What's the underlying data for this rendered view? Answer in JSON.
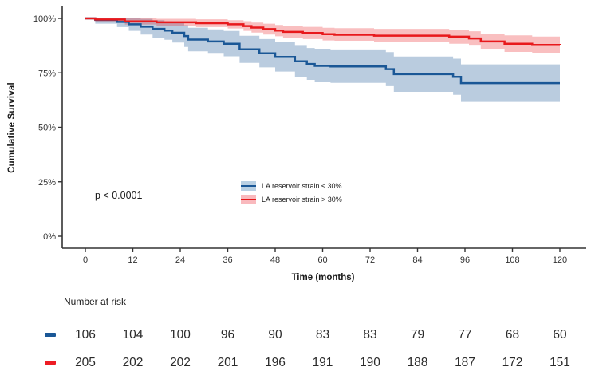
{
  "chart_data": {
    "type": "line",
    "subtype": "kaplan-meier-step",
    "title": "",
    "xlabel": "Time (months)",
    "ylabel": "Cumulative Survival",
    "xlim": [
      0,
      120
    ],
    "ylim": [
      0,
      100
    ],
    "grid": false,
    "x_ticks": [
      0,
      12,
      24,
      36,
      48,
      60,
      72,
      84,
      96,
      108,
      120
    ],
    "y_ticks": [
      0,
      25,
      50,
      75,
      100
    ],
    "y_tick_labels": [
      "0%",
      "25%",
      "50%",
      "75%",
      "100%"
    ],
    "annotation": "p < 0.0001",
    "legend_position": "inside lower-center",
    "axis_color": "#333333",
    "series": [
      {
        "name": "LA reservoir strain ≤ 30%",
        "color": "#1a5796",
        "band_color": "rgba(26,87,150,0.30)",
        "swatch_color": "#b9d0e3",
        "points_format": [
          "month",
          "survival_pct",
          "ci_lower_pct",
          "ci_upper_pct"
        ],
        "points": [
          [
            0,
            100,
            100,
            100
          ],
          [
            2.5,
            99.3,
            97.6,
            100
          ],
          [
            8,
            98.4,
            96.0,
            100
          ],
          [
            11,
            97.3,
            94.3,
            100
          ],
          [
            14,
            96.2,
            92.6,
            99.8
          ],
          [
            17,
            95.2,
            91.2,
            99.2
          ],
          [
            20,
            94.4,
            90.2,
            98.6
          ],
          [
            22,
            93.4,
            88.9,
            97.9
          ],
          [
            25,
            91.9,
            86.9,
            96.9
          ],
          [
            26,
            90.3,
            84.9,
            95.7
          ],
          [
            31,
            89.4,
            83.8,
            95.0
          ],
          [
            35,
            88.4,
            82.6,
            94.2
          ],
          [
            39,
            85.8,
            79.6,
            92.0
          ],
          [
            44,
            84.0,
            77.5,
            90.5
          ],
          [
            48,
            82.3,
            75.6,
            89.0
          ],
          [
            53,
            80.3,
            73.2,
            87.4
          ],
          [
            56,
            79.1,
            71.8,
            86.4
          ],
          [
            58,
            78.2,
            70.7,
            85.7
          ],
          [
            62,
            77.9,
            70.4,
            85.4
          ],
          [
            76,
            76.7,
            68.9,
            84.5
          ],
          [
            78,
            74.4,
            66.3,
            82.5
          ],
          [
            93,
            73.2,
            64.9,
            81.5
          ],
          [
            95,
            70.3,
            61.7,
            78.9
          ],
          [
            120,
            70.3,
            61.7,
            78.9
          ]
        ]
      },
      {
        "name": "LA reservoir strain > 30%",
        "color": "#e8191c",
        "band_color": "rgba(232,25,28,0.28)",
        "swatch_color": "#f9b9bd",
        "points_format": [
          "month",
          "survival_pct",
          "ci_lower_pct",
          "ci_upper_pct"
        ],
        "points": [
          [
            0,
            100,
            100,
            100
          ],
          [
            2.5,
            99.5,
            98.6,
            100
          ],
          [
            10,
            98.6,
            97.2,
            100
          ],
          [
            18,
            98.2,
            96.6,
            99.8
          ],
          [
            28,
            97.8,
            96.0,
            99.6
          ],
          [
            36,
            97.3,
            95.4,
            99.2
          ],
          [
            40,
            96.5,
            94.3,
            98.7
          ],
          [
            42,
            95.8,
            93.5,
            98.1
          ],
          [
            45,
            95.1,
            92.6,
            97.6
          ],
          [
            48,
            94.4,
            91.8,
            97.0
          ],
          [
            50,
            93.8,
            91.1,
            96.5
          ],
          [
            55,
            93.3,
            90.5,
            96.1
          ],
          [
            60,
            92.8,
            89.9,
            95.7
          ],
          [
            63,
            92.5,
            89.5,
            95.5
          ],
          [
            73,
            92.1,
            89.0,
            95.2
          ],
          [
            92,
            91.6,
            88.4,
            94.8
          ],
          [
            97,
            90.8,
            87.5,
            94.1
          ],
          [
            100,
            89.4,
            85.8,
            93.0
          ],
          [
            106,
            88.4,
            84.6,
            92.2
          ],
          [
            113,
            87.8,
            83.9,
            91.7
          ],
          [
            120,
            87.6,
            83.6,
            91.6
          ]
        ]
      }
    ],
    "risk_table": {
      "title": "Number at risk",
      "times": [
        0,
        12,
        24,
        36,
        48,
        60,
        72,
        84,
        96,
        108,
        120
      ],
      "rows": [
        {
          "group": "LA reservoir strain ≤ 30%",
          "color": "#1a5796",
          "counts": [
            106,
            104,
            100,
            96,
            90,
            83,
            83,
            79,
            77,
            68,
            60
          ]
        },
        {
          "group": "LA reservoir strain > 30%",
          "color": "#ed1c24",
          "counts": [
            205,
            202,
            202,
            201,
            196,
            191,
            190,
            188,
            187,
            172,
            151
          ]
        }
      ]
    }
  }
}
